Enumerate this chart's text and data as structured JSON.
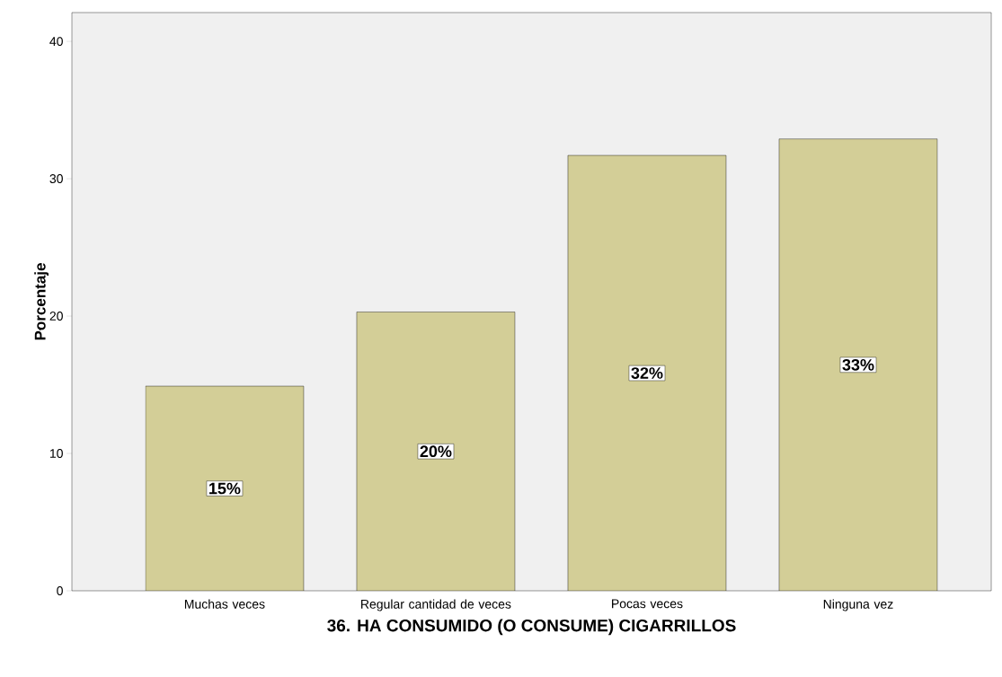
{
  "chart_data": {
    "type": "bar",
    "xlabel": "36. HA CONSUMIDO (O CONSUME) CIGARRILLOS",
    "ylabel": "Porcentaje",
    "categories": [
      "Muchas veces",
      "Regular cantidad de veces",
      "Pocas veces",
      "Ninguna vez"
    ],
    "values": [
      14.9,
      20.3,
      31.7,
      32.9
    ],
    "value_labels": [
      "15%",
      "20%",
      "32%",
      "33%"
    ],
    "color": "#d3ce97",
    "ylim": [
      0,
      42.1
    ],
    "yticks": [
      0,
      10,
      20,
      30,
      40
    ]
  }
}
